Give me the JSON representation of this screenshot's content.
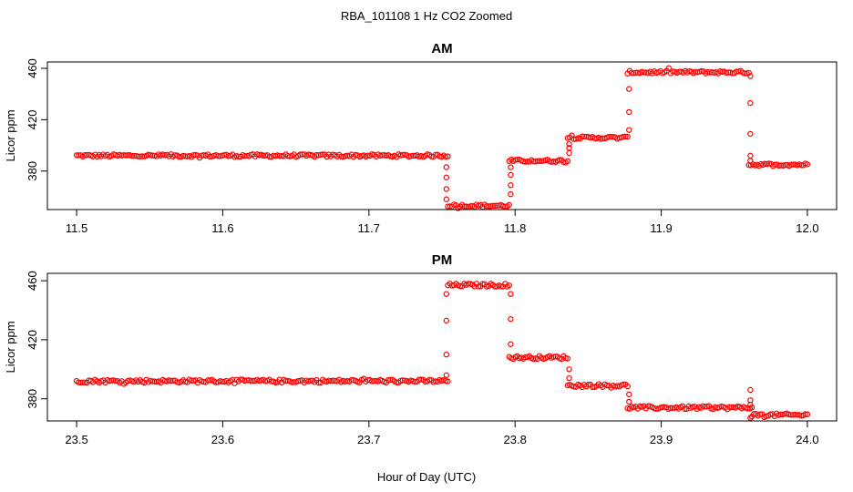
{
  "figure": {
    "title": "RBA_101108  1 Hz CO2 Zoomed",
    "xlabel": "Hour of Day (UTC)"
  },
  "chart_data": [
    {
      "type": "scatter",
      "title": "AM",
      "xlabel": "",
      "ylabel": "Licor ppm",
      "xlim": [
        11.48,
        12.02
      ],
      "ylim": [
        350,
        465
      ],
      "xticks": [
        11.5,
        11.6,
        11.7,
        11.8,
        11.9,
        12.0
      ],
      "xtick_labels": [
        "11.5",
        "11.6",
        "11.7",
        "11.8",
        "11.9",
        "12.0"
      ],
      "yticks": [
        380,
        420,
        460
      ],
      "ytick_labels": [
        "380",
        "420",
        "460"
      ],
      "marker_color": "#ff0000",
      "grid": false,
      "series": [
        {
          "levels": [
            {
              "x_start": 11.5,
              "x_end": 11.754,
              "y": 392
            },
            {
              "x_start": 11.754,
              "x_end": 11.796,
              "y": 353
            },
            {
              "x_start": 11.796,
              "x_end": 11.836,
              "y": 388
            },
            {
              "x_start": 11.836,
              "x_end": 11.877,
              "y": 406
            },
            {
              "x_start": 11.877,
              "x_end": 11.96,
              "y": 457
            },
            {
              "x_start": 11.96,
              "x_end": 12.0,
              "y": 385
            }
          ],
          "transitions": [
            {
              "x": 11.753,
              "values": [
                383,
                375,
                366,
                358
              ]
            },
            {
              "x": 11.797,
              "values": [
                362,
                369,
                377,
                383
              ]
            },
            {
              "x": 11.837,
              "values": [
                394,
                398,
                401
              ]
            },
            {
              "x": 11.878,
              "values": [
                412,
                426,
                444
              ]
            },
            {
              "x": 11.961,
              "values": [
                454,
                433,
                409,
                392,
                388
              ]
            }
          ]
        }
      ]
    },
    {
      "type": "scatter",
      "title": "PM",
      "xlabel": "Hour of Day (UTC)",
      "ylabel": "Licor ppm",
      "xlim": [
        23.48,
        24.02
      ],
      "ylim": [
        365,
        465
      ],
      "xticks": [
        23.5,
        23.6,
        23.7,
        23.8,
        23.9,
        24.0
      ],
      "xtick_labels": [
        "23.5",
        "23.6",
        "23.7",
        "23.8",
        "23.9",
        "24.0"
      ],
      "yticks": [
        380,
        420,
        460
      ],
      "ytick_labels": [
        "380",
        "420",
        "460"
      ],
      "marker_color": "#ff0000",
      "grid": false,
      "series": [
        {
          "levels": [
            {
              "x_start": 23.5,
              "x_end": 23.754,
              "y": 392
            },
            {
              "x_start": 23.754,
              "x_end": 23.796,
              "y": 457
            },
            {
              "x_start": 23.796,
              "x_end": 23.836,
              "y": 408
            },
            {
              "x_start": 23.836,
              "x_end": 23.877,
              "y": 389
            },
            {
              "x_start": 23.877,
              "x_end": 23.962,
              "y": 374
            },
            {
              "x_start": 23.962,
              "x_end": 24.0,
              "y": 369
            }
          ],
          "transitions": [
            {
              "x": 23.753,
              "values": [
                396,
                410,
                433,
                451
              ]
            },
            {
              "x": 23.797,
              "values": [
                451,
                434,
                417
              ]
            },
            {
              "x": 23.837,
              "values": [
                400,
                394
              ]
            },
            {
              "x": 23.878,
              "values": [
                383,
                378
              ]
            },
            {
              "x": 23.961,
              "values": [
                386,
                379,
                376,
                367
              ]
            }
          ]
        }
      ]
    }
  ]
}
